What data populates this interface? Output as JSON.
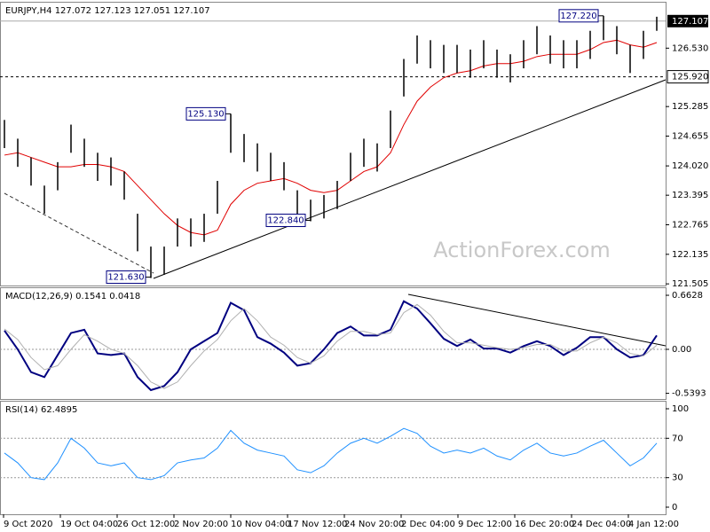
{
  "watermark": "ActionForex.com",
  "x_labels": [
    "9 Oct 2020",
    "19 Oct 04:00",
    "26 Oct 12:00",
    "2 Nov 20:00",
    "10 Nov 04:00",
    "17 Nov 12:00",
    "24 Nov 20:00",
    "2 Dec 04:00",
    "9 Dec 12:00",
    "16 Dec 20:00",
    "24 Dec 04:00",
    "4 Jan 12:00"
  ],
  "chart_data": [
    {
      "type": "ohlc",
      "title": "EURJPY,H4  127.072 127.123 127.051 127.107",
      "high": [
        125.0,
        124.6,
        124.2,
        123.6,
        124.1,
        124.9,
        124.6,
        124.3,
        124.2,
        123.9,
        123.0,
        122.3,
        122.3,
        122.9,
        122.9,
        123.0,
        123.7,
        125.13,
        124.7,
        124.5,
        124.3,
        124.1,
        123.5,
        123.3,
        123.4,
        123.7,
        124.3,
        124.6,
        124.5,
        125.2,
        126.3,
        126.8,
        126.7,
        126.6,
        126.6,
        126.5,
        126.7,
        126.5,
        126.4,
        126.7,
        127.0,
        126.8,
        126.7,
        126.7,
        126.9,
        127.22,
        127.0,
        126.6,
        126.9,
        127.2
      ],
      "low": [
        124.4,
        124.0,
        123.6,
        123.0,
        123.5,
        124.3,
        124.0,
        123.7,
        123.6,
        123.3,
        122.2,
        121.63,
        121.7,
        122.3,
        122.3,
        122.4,
        123.0,
        124.3,
        124.1,
        123.9,
        123.7,
        123.5,
        122.9,
        122.84,
        122.9,
        123.1,
        123.7,
        124.0,
        123.9,
        124.4,
        125.5,
        126.2,
        126.1,
        126.0,
        126.0,
        125.9,
        126.1,
        125.9,
        125.8,
        126.1,
        126.4,
        126.2,
        126.1,
        126.1,
        126.3,
        126.7,
        126.4,
        126.0,
        126.3,
        126.9
      ],
      "color": "#000000",
      "series": [
        {
          "color": "#e00000",
          "values": [
            124.25,
            124.3,
            124.2,
            124.1,
            124.0,
            124.0,
            124.05,
            124.05,
            124.0,
            123.9,
            123.6,
            123.3,
            123.0,
            122.75,
            122.6,
            122.55,
            122.65,
            123.2,
            123.5,
            123.65,
            123.7,
            123.75,
            123.65,
            123.5,
            123.45,
            123.5,
            123.7,
            123.9,
            124.0,
            124.3,
            124.9,
            125.4,
            125.7,
            125.9,
            126.0,
            126.05,
            126.15,
            126.2,
            126.2,
            126.25,
            126.35,
            126.4,
            126.4,
            126.4,
            126.5,
            126.65,
            126.7,
            126.6,
            126.55,
            126.65
          ]
        }
      ],
      "ylim": [
        121.47,
        127.5
      ],
      "yticks": [
        {
          "value": 126.53,
          "label": "126.530"
        },
        125.285,
        124.655,
        {
          "value": 124.02,
          "label": "124.020"
        },
        123.395,
        122.765,
        122.135,
        121.505
      ],
      "levels": [
        {
          "value": 125.92,
          "label": "125.920"
        }
      ],
      "current": 127.107,
      "annotations": [
        {
          "value": 127.22,
          "label": "127.220"
        },
        {
          "value": 125.13,
          "label": "125.130"
        },
        {
          "value": 122.84,
          "label": "122.840"
        },
        {
          "value": 121.63,
          "label": "121.630"
        }
      ]
    },
    {
      "type": "line",
      "title": "MACD(12,26,9) 0.1541 0.0418",
      "series": [
        {
          "color": "#000080",
          "width": 2,
          "values": [
            0.23,
            0,
            -0.28,
            -0.34,
            -0.07,
            0.2,
            0.24,
            -0.05,
            -0.07,
            -0.05,
            -0.34,
            -0.5,
            -0.45,
            -0.28,
            0,
            0.1,
            0.2,
            0.57,
            0.48,
            0.15,
            0.07,
            -0.04,
            -0.2,
            -0.17,
            0,
            0.2,
            0.28,
            0.17,
            0.17,
            0.24,
            0.59,
            0.5,
            0.32,
            0.13,
            0.04,
            0.12,
            0.01,
            0.01,
            -0.04,
            0.04,
            0.1,
            0.04,
            -0.07,
            0.02,
            0.15,
            0.15,
            0,
            -0.1,
            -0.07,
            0.17
          ]
        },
        {
          "color": "#b0b0b0",
          "width": 1,
          "values": [
            0.25,
            0.12,
            -0.1,
            -0.25,
            -0.2,
            0.0,
            0.18,
            0.1,
            0.0,
            -0.05,
            -0.2,
            -0.4,
            -0.48,
            -0.4,
            -0.2,
            -0.02,
            0.12,
            0.35,
            0.5,
            0.35,
            0.15,
            0.05,
            -0.1,
            -0.17,
            -0.08,
            0.1,
            0.22,
            0.22,
            0.18,
            0.2,
            0.45,
            0.55,
            0.42,
            0.22,
            0.08,
            0.08,
            0.05,
            0.02,
            0.0,
            0.02,
            0.06,
            0.06,
            -0.02,
            -0.02,
            0.08,
            0.15,
            0.08,
            -0.05,
            -0.08,
            0.05
          ]
        }
      ],
      "ylim": [
        -0.609,
        0.75
      ],
      "yticks": [
        0.6628,
        {
          "value": 0,
          "label": "0.00"
        },
        -0.5393
      ],
      "hlines": [
        0
      ]
    },
    {
      "type": "line",
      "title": "RSI(14) 62.4895",
      "series": [
        {
          "color": "#1e90ff",
          "width": 1,
          "values": [
            55,
            45,
            30,
            28,
            45,
            70,
            60,
            45,
            42,
            45,
            30,
            28,
            32,
            45,
            48,
            50,
            60,
            78,
            65,
            58,
            55,
            52,
            38,
            35,
            42,
            55,
            65,
            70,
            65,
            72,
            80,
            75,
            62,
            55,
            58,
            55,
            60,
            52,
            48,
            58,
            65,
            55,
            52,
            55,
            62,
            68,
            55,
            42,
            50,
            65
          ]
        }
      ],
      "ylim": [
        -7.2,
        107.2
      ],
      "yticks": [
        100,
        70,
        30,
        0
      ],
      "hlines": [
        70,
        30
      ]
    }
  ]
}
